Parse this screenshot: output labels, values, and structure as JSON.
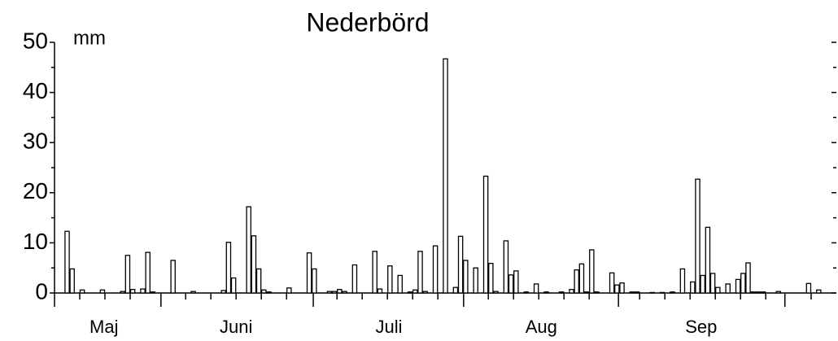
{
  "chart_data": {
    "type": "bar",
    "title": "Nederbörd",
    "y_unit_label": "mm",
    "color": "#ffffff",
    "edge_color": "#000000",
    "xlim": [
      0,
      155
    ],
    "ylim": [
      0,
      50
    ],
    "yticks": [
      0,
      10,
      20,
      30,
      40,
      50
    ],
    "yticks_minor": [
      5,
      15,
      25,
      35,
      45
    ],
    "xticks": [
      {
        "value": 9.8,
        "label": "Maj"
      },
      {
        "value": 36,
        "label": "Juni"
      },
      {
        "value": 66.3,
        "label": "Juli"
      },
      {
        "value": 96.5,
        "label": "Aug"
      },
      {
        "value": 128.2,
        "label": "Sep"
      }
    ],
    "xticks_major": [
      0,
      21.1,
      51.3,
      81.1,
      111.8,
      144.8
    ],
    "xticks_minor": [
      5,
      10,
      15,
      26,
      31,
      36,
      41,
      46,
      56,
      61,
      66,
      71,
      76,
      86,
      91,
      96,
      101,
      106,
      116,
      121,
      126,
      131,
      136,
      141,
      150
    ],
    "right_ticks": true,
    "x": [
      2,
      3,
      5,
      9,
      13,
      14,
      15,
      17,
      18,
      19,
      23,
      27,
      33,
      34,
      35,
      38,
      39,
      40,
      41,
      42,
      46,
      50,
      51,
      54,
      55,
      56,
      57,
      59,
      63,
      64,
      66,
      68,
      70,
      71,
      72,
      73,
      75,
      77,
      79,
      80,
      81,
      83,
      85,
      86,
      87,
      89,
      90,
      91,
      93,
      95,
      97,
      100,
      102,
      103,
      104,
      105,
      106,
      107,
      110,
      111,
      112,
      114,
      115,
      118,
      120,
      122,
      124,
      126,
      127,
      128,
      129,
      130,
      131,
      133,
      135,
      136,
      137,
      138,
      139,
      140,
      143,
      149,
      151
    ],
    "values": [
      12.3,
      4.8,
      0.6,
      0.6,
      0.3,
      7.5,
      0.7,
      0.8,
      8.1,
      0.2,
      6.5,
      0.3,
      0.5,
      10.1,
      3,
      17.2,
      11.4,
      4.8,
      0.6,
      0.2,
      1,
      8,
      4.8,
      0.3,
      0.3,
      0.7,
      0.3,
      5.6,
      8.3,
      0.8,
      5.4,
      3.5,
      0.2,
      0.6,
      8.3,
      0.3,
      9.4,
      46.7,
      1.1,
      11.3,
      6.5,
      5,
      23.3,
      5.9,
      0.3,
      10.4,
      3.6,
      4.4,
      0.2,
      1.8,
      0.2,
      0.2,
      0.7,
      4.6,
      5.8,
      0.2,
      8.6,
      0.2,
      4,
      1.6,
      2,
      0.2,
      0.2,
      0.1,
      0.1,
      0.2,
      4.8,
      2.2,
      22.7,
      3.5,
      13.1,
      3.9,
      1.1,
      1.8,
      2.7,
      3.9,
      6,
      0.2,
      0.2,
      0.2,
      0.3,
      1.9,
      0.6
    ]
  }
}
